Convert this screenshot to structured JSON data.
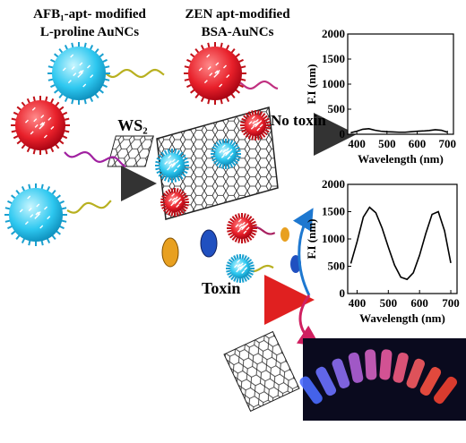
{
  "labels": {
    "afb_line1": "AFB₁-apt- modified",
    "afb_line2": "L-proline AuNCs",
    "zen_line1": "ZEN apt-modified",
    "zen_line2": "BSA-AuNCs",
    "ws2": "WS₂",
    "no_toxin": "No toxin",
    "toxin": "Toxin"
  },
  "chart_data": [
    {
      "type": "line",
      "x_label": "Wavelength (nm)",
      "y_label": "F.I (nm)",
      "xlim": [
        370,
        720
      ],
      "ylim": [
        0,
        2000
      ],
      "xticks": [
        400,
        500,
        600,
        700
      ],
      "yticks": [
        0,
        500,
        1000,
        1500,
        2000
      ],
      "x": [
        380,
        400,
        420,
        440,
        460,
        480,
        500,
        520,
        540,
        560,
        580,
        600,
        620,
        640,
        660,
        680,
        700
      ],
      "values": [
        30,
        60,
        100,
        110,
        80,
        60,
        50,
        45,
        40,
        40,
        50,
        60,
        65,
        75,
        90,
        80,
        40
      ],
      "color": "#000000"
    },
    {
      "type": "line",
      "x_label": "Wavelength (nm)",
      "y_label": "F.I (nm)",
      "xlim": [
        370,
        720
      ],
      "ylim": [
        0,
        2000
      ],
      "xticks": [
        400,
        500,
        600,
        700
      ],
      "yticks": [
        0,
        500,
        1000,
        1500,
        2000
      ],
      "x": [
        380,
        400,
        420,
        440,
        460,
        480,
        500,
        520,
        540,
        560,
        580,
        600,
        620,
        640,
        660,
        680,
        700
      ],
      "values": [
        550,
        950,
        1400,
        1580,
        1480,
        1200,
        850,
        520,
        300,
        260,
        380,
        700,
        1100,
        1450,
        1500,
        1150,
        560
      ],
      "color": "#000000"
    }
  ]
}
